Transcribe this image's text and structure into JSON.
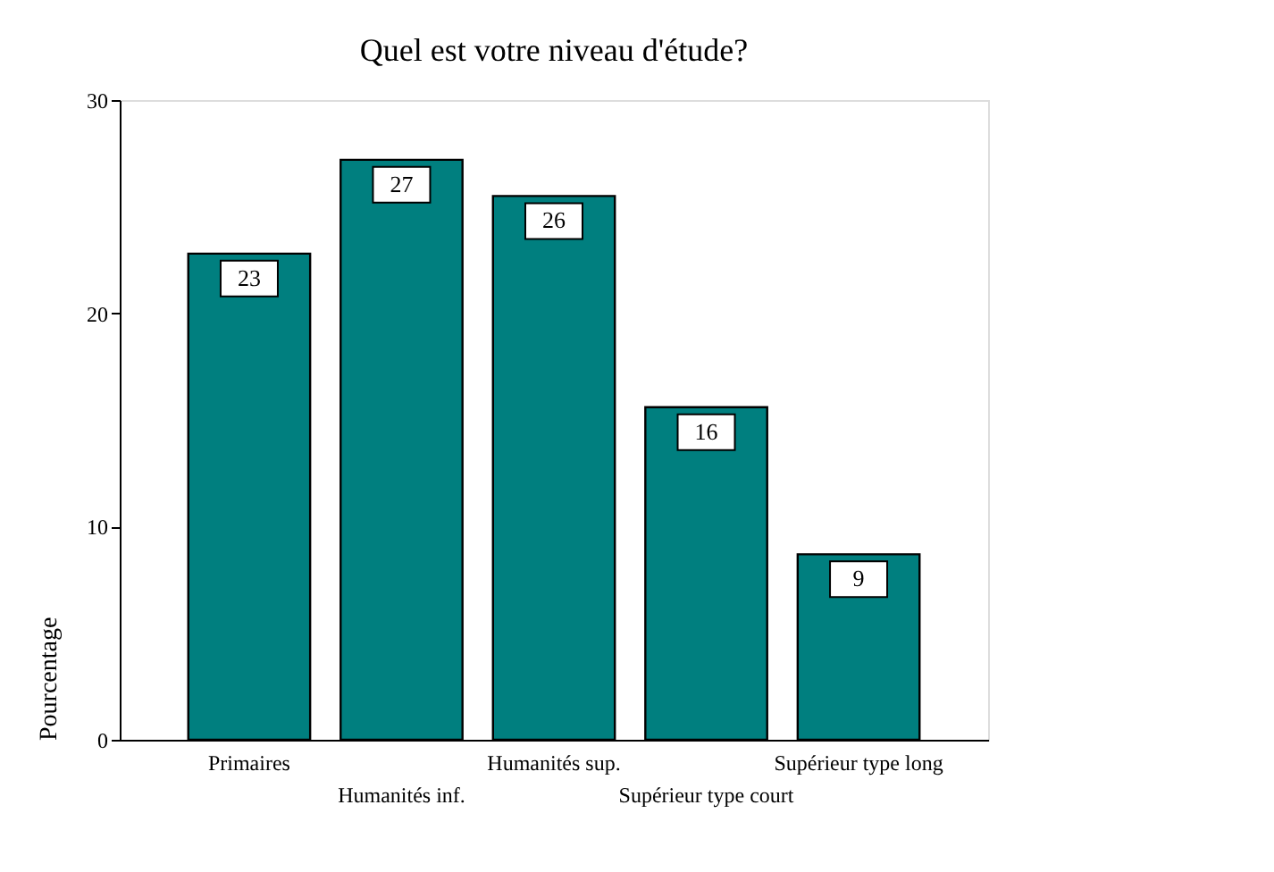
{
  "chart_data": {
    "type": "bar",
    "title": "Quel est votre niveau d'étude?",
    "categories": [
      "Primaires",
      "Humanités inf.",
      "Humanités sup.",
      "Supérieur type court",
      "Supérieur type long"
    ],
    "values": [
      22.8,
      27.2,
      25.5,
      15.6,
      8.7
    ],
    "value_labels": [
      "23",
      "27",
      "26",
      "16",
      "9"
    ],
    "color": "#007f7f",
    "ylabel": "Pourcentage",
    "ylim": [
      0,
      30
    ],
    "yticks": [
      0,
      10,
      20,
      30
    ],
    "grid": false
  }
}
